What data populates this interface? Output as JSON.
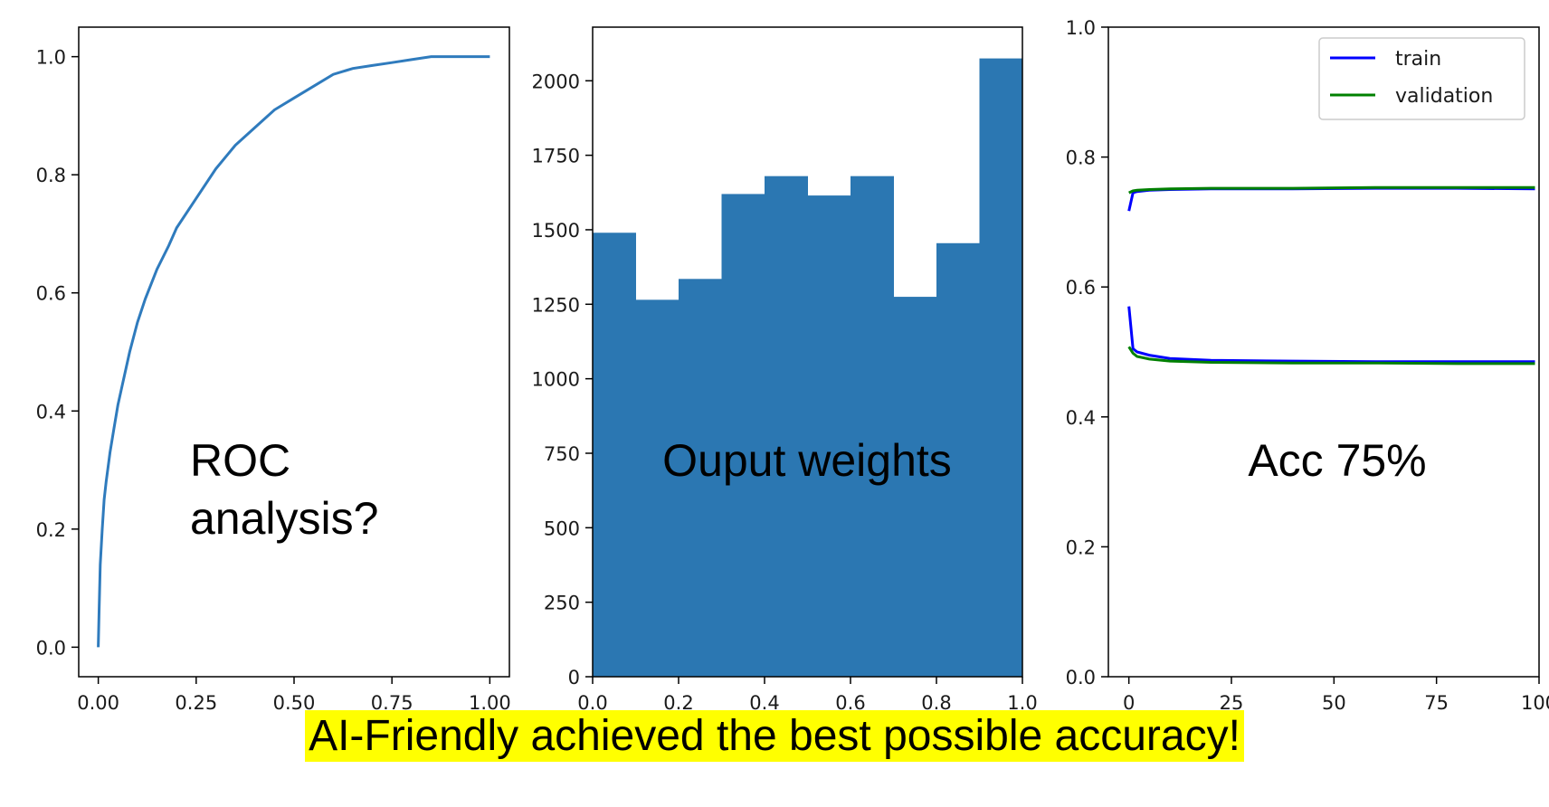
{
  "colors": {
    "bar": "#2b77b2",
    "roc_line": "#2f7bbd",
    "train": "#0000ff",
    "validation": "#008000",
    "caption_highlight": "#ffff00"
  },
  "caption": "AI-Friendly achieved the best possible accuracy!",
  "chart_data": [
    {
      "type": "line",
      "overlay_text": [
        "ROC",
        "analysis?"
      ],
      "xlim": [
        0,
        1
      ],
      "ylim": [
        0,
        1
      ],
      "x_ticks": [
        "0.00",
        "0.25",
        "0.50",
        "0.75",
        "1.00"
      ],
      "y_ticks": [
        "0.0",
        "0.2",
        "0.4",
        "0.6",
        "0.8",
        "1.0"
      ],
      "series": [
        {
          "x": [
            0.0,
            0.002,
            0.005,
            0.01,
            0.015,
            0.02,
            0.03,
            0.04,
            0.05,
            0.06,
            0.08,
            0.1,
            0.12,
            0.15,
            0.18,
            0.2,
            0.25,
            0.3,
            0.35,
            0.4,
            0.45,
            0.5,
            0.55,
            0.6,
            0.65,
            0.7,
            0.75,
            0.8,
            0.85,
            0.9,
            0.95,
            1.0
          ],
          "y": [
            0.0,
            0.06,
            0.14,
            0.2,
            0.25,
            0.28,
            0.33,
            0.37,
            0.41,
            0.44,
            0.5,
            0.55,
            0.59,
            0.64,
            0.68,
            0.71,
            0.76,
            0.81,
            0.85,
            0.88,
            0.91,
            0.93,
            0.95,
            0.97,
            0.98,
            0.985,
            0.99,
            0.995,
            1.0,
            1.0,
            1.0,
            1.0
          ]
        }
      ]
    },
    {
      "type": "bar",
      "overlay_text": [
        "Ouput weights"
      ],
      "xlim": [
        0,
        1
      ],
      "ylim": [
        0,
        2180
      ],
      "x_ticks": [
        "0.0",
        "0.2",
        "0.4",
        "0.6",
        "0.8",
        "1.0"
      ],
      "y_ticks": [
        "0",
        "250",
        "500",
        "750",
        "1000",
        "1250",
        "1500",
        "1750",
        "2000"
      ],
      "bin_edges": [
        0.0,
        0.1,
        0.2,
        0.3,
        0.4,
        0.5,
        0.6,
        0.7,
        0.8,
        0.9,
        1.0
      ],
      "values": [
        1490,
        1265,
        1335,
        1620,
        1680,
        1615,
        1680,
        1275,
        1455,
        2075
      ]
    },
    {
      "type": "line",
      "overlay_text": [
        "Acc 75%"
      ],
      "xlim": [
        -5,
        100
      ],
      "ylim": [
        0,
        1
      ],
      "x_ticks": [
        "0",
        "25",
        "50",
        "75",
        "100"
      ],
      "y_ticks": [
        "0.0",
        "0.2",
        "0.4",
        "0.6",
        "0.8",
        "1.0"
      ],
      "legend": {
        "position": "upper right",
        "entries": [
          "train",
          "validation"
        ]
      },
      "series": [
        {
          "name": "train",
          "metric": "accuracy",
          "x": [
            0,
            1,
            2,
            5,
            10,
            20,
            40,
            60,
            80,
            99
          ],
          "y": [
            0.717,
            0.745,
            0.747,
            0.749,
            0.75,
            0.751,
            0.751,
            0.752,
            0.752,
            0.751
          ]
        },
        {
          "name": "validation",
          "metric": "accuracy",
          "x": [
            0,
            1,
            2,
            5,
            10,
            20,
            40,
            60,
            80,
            99
          ],
          "y": [
            0.745,
            0.748,
            0.749,
            0.75,
            0.751,
            0.752,
            0.752,
            0.753,
            0.753,
            0.753
          ]
        },
        {
          "name": "train",
          "metric": "loss",
          "x": [
            0,
            1,
            2,
            5,
            10,
            20,
            40,
            60,
            80,
            99
          ],
          "y": [
            0.57,
            0.505,
            0.5,
            0.495,
            0.49,
            0.487,
            0.486,
            0.485,
            0.485,
            0.485
          ]
        },
        {
          "name": "validation",
          "metric": "loss",
          "x": [
            0,
            1,
            2,
            5,
            10,
            20,
            40,
            60,
            80,
            99
          ],
          "y": [
            0.508,
            0.498,
            0.493,
            0.489,
            0.486,
            0.484,
            0.483,
            0.483,
            0.482,
            0.482
          ]
        }
      ]
    }
  ]
}
